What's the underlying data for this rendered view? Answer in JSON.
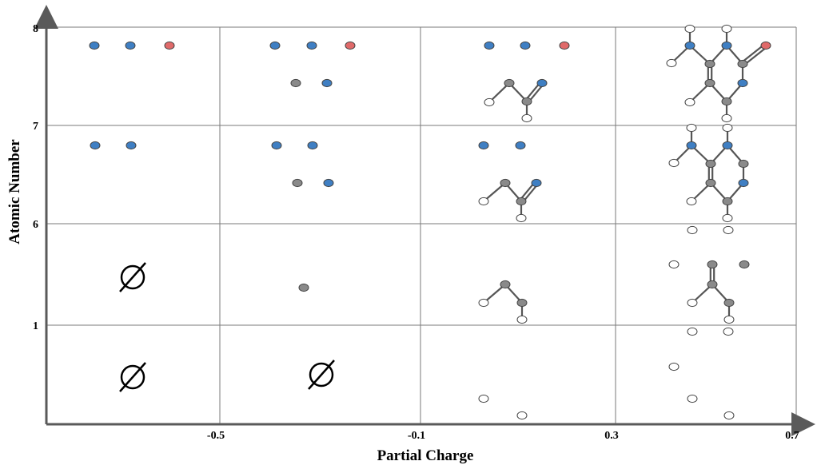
{
  "x_axis": {
    "title": "Partial Charge",
    "ticks": [
      "-0.5",
      "-0.1",
      "0.3",
      "0.7"
    ]
  },
  "y_axis": {
    "title": "Atomic Number",
    "ticks": [
      "1",
      "6",
      "7",
      "8"
    ]
  },
  "empty_symbol": "∅",
  "colors": {
    "hydrogen": "#ffffff",
    "carbon": "#8a8a8a",
    "nitrogen": "#3f7fc3",
    "oxygen": "#e06a6a",
    "bond": "#555555",
    "grid": "#7a7a7a",
    "axis": "#5a5a5a"
  },
  "atom_legend_semantics": [
    "hydrogen-atom",
    "carbon-atom",
    "nitrogen-atom",
    "oxygen-atom"
  ]
}
